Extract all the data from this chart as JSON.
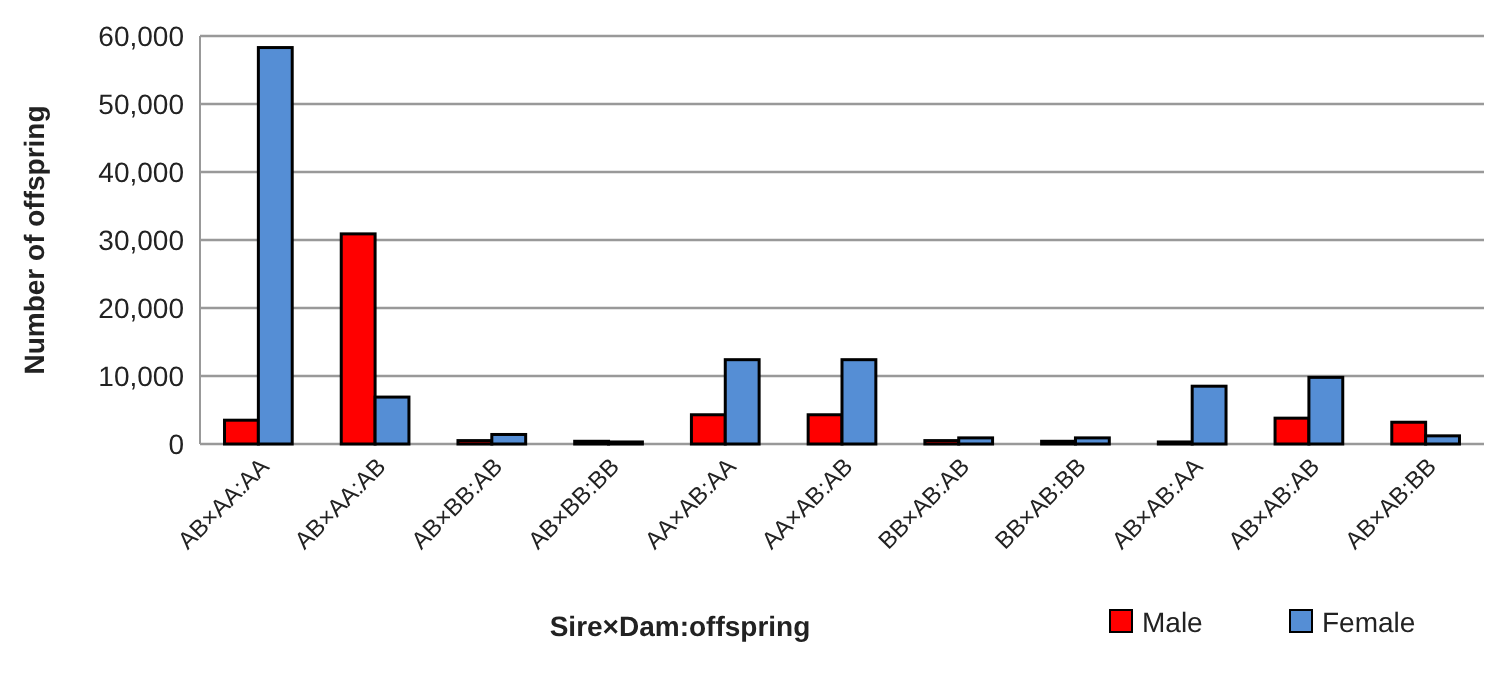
{
  "chart_data": {
    "type": "bar",
    "xlabel": "Sire×Dam:offspring",
    "ylabel": "Number of offspring",
    "categories": [
      "AB×AA:AA",
      "AB×AA:AB",
      "AB×BB:AB",
      "AB×BB:BB",
      "AA×AB:AA",
      "AA×AB:AB",
      "BB×AB:AB",
      "BB×AB:BB",
      "AB×AB:AA",
      "AB×AB:AB",
      "AB×AB:BB"
    ],
    "series": [
      {
        "name": "Male",
        "color": "#ff0000",
        "values": [
          3500,
          30900,
          500,
          400,
          4300,
          4300,
          500,
          400,
          300,
          3800,
          3200
        ]
      },
      {
        "name": "Female",
        "color": "#558ed5",
        "values": [
          58300,
          6900,
          1400,
          300,
          12400,
          12400,
          900,
          900,
          8500,
          9800,
          1200
        ]
      }
    ],
    "ylim": [
      0,
      60000
    ],
    "yticks": [
      {
        "value": 0,
        "label": "0"
      },
      {
        "value": 10000,
        "label": "10,000"
      },
      {
        "value": 20000,
        "label": "20,000"
      },
      {
        "value": 30000,
        "label": "30,000"
      },
      {
        "value": 40000,
        "label": "40,000"
      },
      {
        "value": 50000,
        "label": "50,000"
      },
      {
        "value": 60000,
        "label": "60,000"
      }
    ],
    "grid": "y",
    "legend": "bottom right"
  }
}
